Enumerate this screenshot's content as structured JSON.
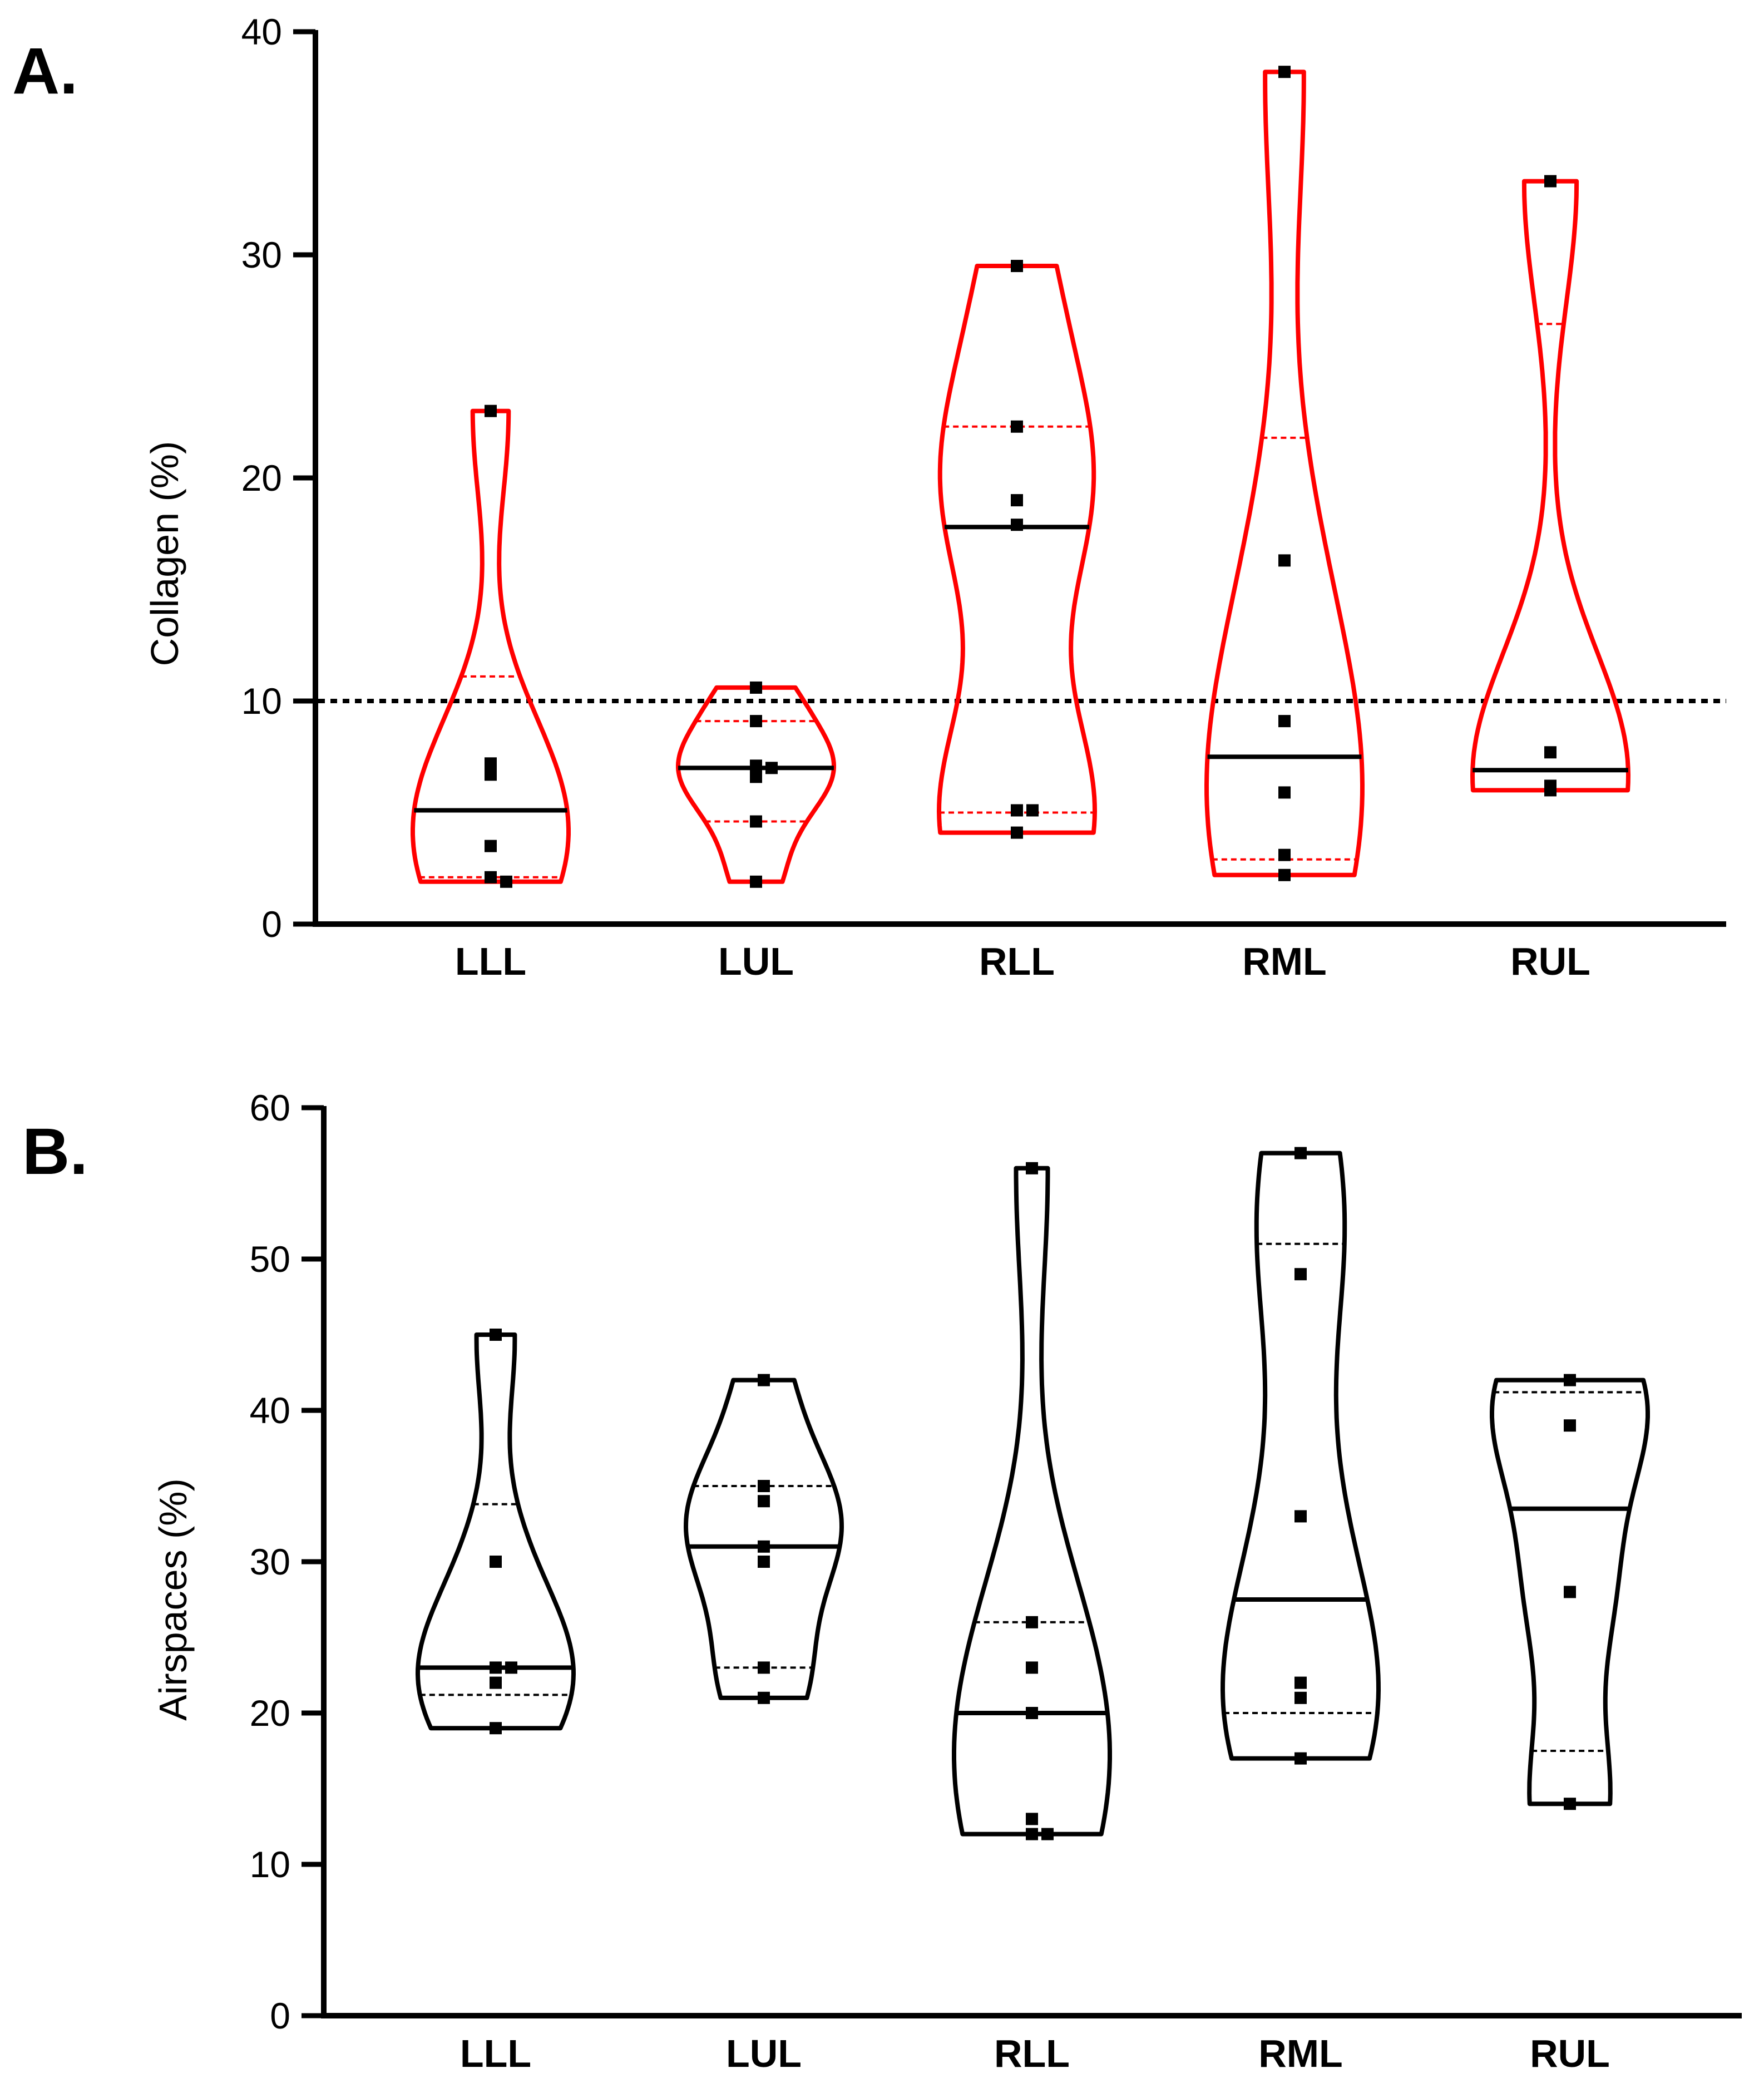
{
  "chart_data": [
    {
      "type": "violin",
      "panel_label": "A.",
      "title": "",
      "xlabel": "",
      "ylabel": "Collagen (%)",
      "ylim": [
        0,
        40
      ],
      "yticks": [
        0,
        10,
        20,
        30,
        40
      ],
      "color": "#ff0000",
      "reference_line": 10,
      "categories": [
        "LLL",
        "LUL",
        "RLL",
        "RML",
        "RUL"
      ],
      "groups": [
        {
          "name": "LLL",
          "points": [
            23.0,
            7.2,
            6.7,
            3.5,
            2.1,
            1.9
          ],
          "median": 5.1,
          "q1": 2.1,
          "q3": 11.1,
          "min": 1.9,
          "max": 23.0
        },
        {
          "name": "LUL",
          "points": [
            10.6,
            9.1,
            7.1,
            7.0,
            6.6,
            4.6,
            1.9
          ],
          "median": 7.0,
          "q1": 4.6,
          "q3": 9.1,
          "min": 1.9,
          "max": 10.6
        },
        {
          "name": "RLL",
          "points": [
            29.5,
            22.3,
            19.0,
            17.9,
            5.1,
            5.1,
            4.1
          ],
          "median": 17.8,
          "q1": 5.0,
          "q3": 22.3,
          "min": 4.1,
          "max": 29.5
        },
        {
          "name": "RML",
          "points": [
            38.2,
            16.3,
            9.1,
            5.9,
            3.1,
            2.2
          ],
          "median": 7.5,
          "q1": 2.9,
          "q3": 21.8,
          "min": 2.2,
          "max": 38.2
        },
        {
          "name": "RUL",
          "points": [
            33.3,
            7.7,
            6.2,
            6.0
          ],
          "median": 6.9,
          "q1": 6.0,
          "q3": 26.9,
          "min": 6.0,
          "max": 33.3
        }
      ]
    },
    {
      "type": "violin",
      "panel_label": "B.",
      "title": "",
      "xlabel": "",
      "ylabel": "Airspaces (%)",
      "ylim": [
        0,
        60
      ],
      "yticks": [
        0,
        10,
        20,
        30,
        40,
        50,
        60
      ],
      "color": "#000000",
      "categories": [
        "LLL",
        "LUL",
        "RLL",
        "RML",
        "RUL"
      ],
      "groups": [
        {
          "name": "LLL",
          "points": [
            45,
            30,
            23,
            23,
            22,
            19
          ],
          "median": 23,
          "q1": 21.2,
          "q3": 33.8,
          "min": 19,
          "max": 45
        },
        {
          "name": "LUL",
          "points": [
            42,
            35,
            34,
            31,
            30,
            23,
            21
          ],
          "median": 31,
          "q1": 23,
          "q3": 35,
          "min": 21,
          "max": 42
        },
        {
          "name": "RLL",
          "points": [
            56,
            26,
            23,
            20,
            13,
            12,
            12
          ],
          "median": 20,
          "q1": 12,
          "q3": 26,
          "min": 12,
          "max": 56
        },
        {
          "name": "RML",
          "points": [
            57,
            49,
            33,
            22,
            21,
            17
          ],
          "median": 27.5,
          "q1": 20,
          "q3": 51,
          "min": 17,
          "max": 57
        },
        {
          "name": "RUL",
          "points": [
            42,
            39,
            28,
            14
          ],
          "median": 33.5,
          "q1": 17.5,
          "q3": 41.2,
          "min": 14,
          "max": 42
        }
      ]
    }
  ]
}
